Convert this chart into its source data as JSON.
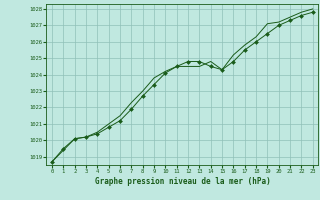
{
  "title": "Graphe pression niveau de la mer (hPa)",
  "bg_color": "#c0e8e0",
  "grid_color": "#90c0b8",
  "line_color": "#1a5c1a",
  "marker_color": "#1a5c1a",
  "xlim": [
    -0.5,
    23.5
  ],
  "ylim": [
    1018.5,
    1028.3
  ],
  "yticks": [
    1019,
    1020,
    1021,
    1022,
    1023,
    1024,
    1025,
    1026,
    1027,
    1028
  ],
  "xticks": [
    0,
    1,
    2,
    3,
    4,
    5,
    6,
    7,
    8,
    9,
    10,
    11,
    12,
    13,
    14,
    15,
    16,
    17,
    18,
    19,
    20,
    21,
    22,
    23
  ],
  "series1_x": [
    0,
    1,
    2,
    3,
    4,
    5,
    6,
    7,
    8,
    9,
    10,
    11,
    12,
    13,
    14,
    15,
    16,
    17,
    18,
    19,
    20,
    21,
    22,
    23
  ],
  "series1_y": [
    1018.7,
    1019.5,
    1020.1,
    1020.2,
    1020.4,
    1020.8,
    1021.2,
    1021.9,
    1022.7,
    1023.4,
    1024.1,
    1024.5,
    1024.8,
    1024.8,
    1024.5,
    1024.3,
    1024.8,
    1025.5,
    1026.0,
    1026.5,
    1027.0,
    1027.3,
    1027.6,
    1027.8
  ],
  "series2_x": [
    0,
    1,
    2,
    3,
    4,
    5,
    6,
    7,
    8,
    9,
    10,
    11,
    12,
    13,
    14,
    15,
    16,
    17,
    18,
    19,
    20,
    21,
    22,
    23
  ],
  "series2_y": [
    1018.7,
    1019.4,
    1020.1,
    1020.2,
    1020.5,
    1021.0,
    1021.5,
    1022.3,
    1023.0,
    1023.8,
    1024.2,
    1024.5,
    1024.5,
    1024.5,
    1024.8,
    1024.3,
    1025.2,
    1025.8,
    1026.3,
    1027.1,
    1027.2,
    1027.5,
    1027.8,
    1028.0
  ]
}
